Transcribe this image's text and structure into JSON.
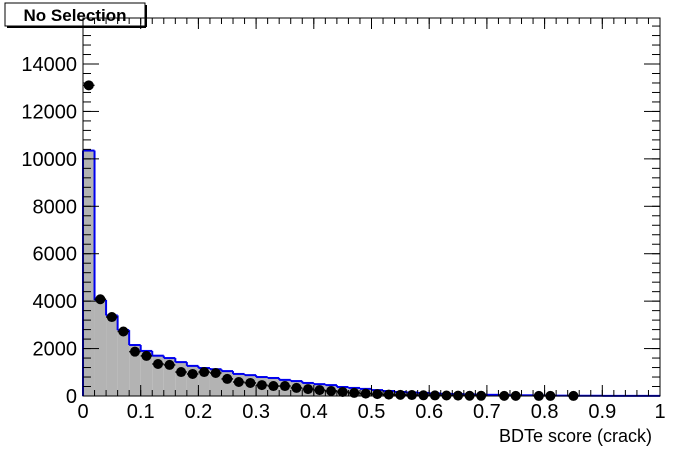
{
  "chart_data": {
    "type": "histogram",
    "title": "No Selection",
    "x_label": "BDTe score (crack)",
    "bins": [
      0,
      0.02,
      0.04,
      0.06,
      0.08,
      0.1,
      0.12,
      0.14,
      0.16,
      0.18,
      0.2,
      0.22,
      0.24,
      0.26,
      0.28,
      0.3,
      0.32,
      0.34,
      0.36,
      0.38,
      0.4,
      0.42,
      0.44,
      0.46,
      0.48,
      0.5,
      0.52,
      0.54,
      0.56,
      0.58,
      0.6,
      0.62,
      0.64,
      0.66,
      0.68,
      0.7,
      0.72,
      0.74,
      0.76,
      0.78,
      0.8,
      0.82,
      0.84,
      0.86,
      0.88,
      0.9,
      0.92,
      0.94,
      0.96,
      0.98,
      1
    ],
    "counts": [
      10350,
      4050,
      3400,
      2780,
      2150,
      1900,
      1700,
      1600,
      1430,
      1270,
      1180,
      1130,
      1050,
      930,
      880,
      800,
      760,
      680,
      630,
      550,
      500,
      460,
      380,
      340,
      300,
      250,
      210,
      170,
      150,
      130,
      110,
      90,
      80,
      70,
      60,
      50,
      40,
      30,
      30,
      20,
      20,
      15,
      10,
      10,
      10,
      5,
      5,
      5,
      5,
      5
    ],
    "fill_color": "#b3b3b3",
    "line_color": "#0000ee",
    "points": {
      "x": [
        0.01,
        0.03,
        0.05,
        0.07,
        0.09,
        0.11,
        0.13,
        0.15,
        0.17,
        0.19,
        0.21,
        0.23,
        0.25,
        0.27,
        0.29,
        0.31,
        0.33,
        0.35,
        0.37,
        0.39,
        0.41,
        0.43,
        0.45,
        0.47,
        0.49,
        0.51,
        0.53,
        0.55,
        0.57,
        0.59,
        0.61,
        0.63,
        0.65,
        0.67,
        0.69,
        0.73,
        0.75,
        0.79,
        0.81,
        0.85
      ],
      "y": [
        13100,
        4080,
        3330,
        2720,
        1870,
        1690,
        1350,
        1310,
        1010,
        930,
        1010,
        970,
        720,
        590,
        550,
        460,
        420,
        420,
        340,
        290,
        250,
        210,
        170,
        130,
        100,
        80,
        60,
        50,
        40,
        30,
        25,
        20,
        15,
        10,
        8,
        5,
        5,
        4,
        4,
        3
      ],
      "color": "#000000"
    },
    "xlim": [
      0,
      1
    ],
    "ylim": [
      0,
      15940
    ],
    "xticks": [
      0,
      0.1,
      0.2,
      0.3,
      0.4,
      0.5,
      0.6,
      0.7,
      0.8,
      0.9,
      1
    ],
    "yticks": [
      0,
      2000,
      4000,
      6000,
      8000,
      10000,
      12000,
      14000
    ]
  }
}
